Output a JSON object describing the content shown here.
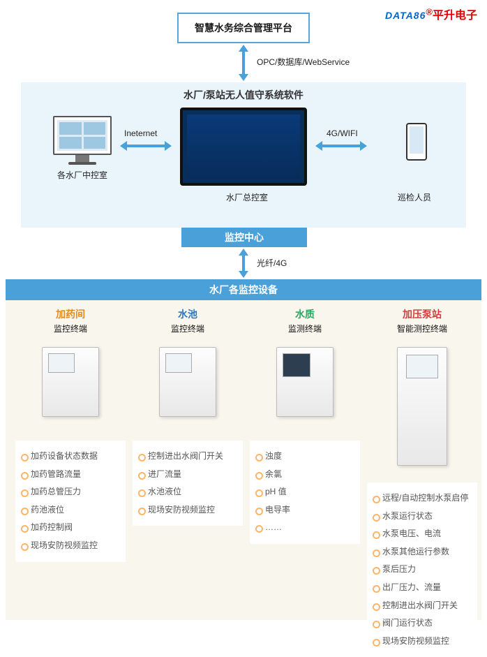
{
  "logo": {
    "data": "DATA86",
    "reg": "®",
    "brand": "平升电子"
  },
  "topbox": "智慧水务综合管理平台",
  "link1": "OPC/数据库/WebService",
  "panel1_title": "水厂/泵站无人值守系统软件",
  "link_internet": "Ineternet",
  "link_4g": "4G/WIFI",
  "cap_ctrlroom": "各水厂中控室",
  "cap_main": "水厂总控室",
  "cap_inspect": "巡检人员",
  "mc_bar": "监控中心",
  "link_fiber": "光纤/4G",
  "band_devices": "水厂各监控设备",
  "cols": [
    {
      "t1": "加药间",
      "t1c": "orange",
      "t2": "监控终端",
      "items": [
        "加药设备状态数据",
        "加药管路流量",
        "加药总管压力",
        "药池液位",
        "加药控制阀",
        "现场安防视频监控"
      ]
    },
    {
      "t1": "水池",
      "t1c": "blue",
      "t2": "监控终端",
      "items": [
        "控制进出水阀门开关",
        "进厂流量",
        "水池液位",
        "现场安防视频监控"
      ]
    },
    {
      "t1": "水质",
      "t1c": "green",
      "t2": "监测终端",
      "items": [
        "浊度",
        "余氯",
        "pH 值",
        "电导率",
        "……"
      ]
    },
    {
      "t1": "加压泵站",
      "t1c": "red",
      "t2": "智能测控终端",
      "items": [
        "远程/自动控制水泵启停",
        "水泵运行状态",
        "水泵电压、电流",
        "水泵其他运行参数",
        "泵后压力",
        "出厂压力、流量",
        "控制进出水阀门开关",
        "阀门运行状态",
        "现场安防视频监控"
      ]
    }
  ],
  "colors": {
    "accent": "#4aa0d8",
    "panel1_bg": "#eaf4fb",
    "panel2_bg": "#f9f6ee",
    "orange": "#e58a1f",
    "blue": "#2a78c2",
    "green": "#2aa862",
    "red": "#d83a3a"
  }
}
